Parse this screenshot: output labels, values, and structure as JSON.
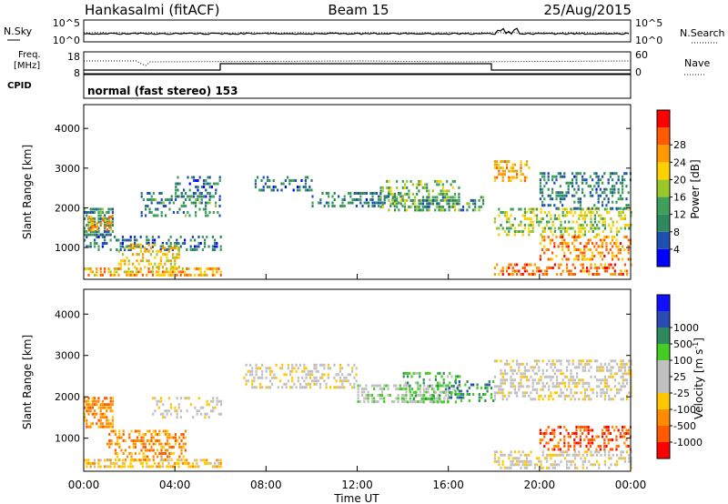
{
  "header": {
    "station": "Hankasalmi (fitACF)",
    "beam": "Beam 15",
    "date": "25/Aug/2015"
  },
  "summary_panel": {
    "nsky_label": "N.Sky",
    "nsearch_label": "N.Search",
    "noise_tick_top": "10^5",
    "noise_tick_bottom": "10^0",
    "freq_label_line1": "Freq.",
    "freq_label_line2": "[MHz]",
    "freq_tick_top": "18",
    "freq_tick_bottom": "8",
    "nave_label": "Nave",
    "nave_tick_top": "60",
    "nave_tick_bottom": "0",
    "cpid_label": "CPID",
    "cpid_text": "normal (fast stereo) 153"
  },
  "colors": {
    "power": [
      "#0000ff",
      "#1f4fb0",
      "#2e8a5e",
      "#3ea05a",
      "#9ac82a",
      "#ffd000",
      "#ff9900",
      "#ff5a00",
      "#ff0000"
    ],
    "velocity": [
      "#ff0000",
      "#ff5a00",
      "#ff8c00",
      "#ffc800",
      "#c0c0c0",
      "#c0c0c0",
      "#44cc22",
      "#2e8a5e",
      "#2a4ab5",
      "#1010ff"
    ]
  },
  "chart_data": [
    {
      "type": "heatmap",
      "name": "power",
      "ylabel": "Slant Range [km]",
      "yticks": [
        "1000",
        "2000",
        "3000",
        "4000"
      ],
      "ytick_values": [
        1000,
        2000,
        3000,
        4000
      ],
      "ylim": [
        200,
        4600
      ],
      "xlim": [
        0,
        24
      ],
      "colorbar_label": "Power [dB]",
      "colorbar_ticks": [
        "4",
        "8",
        "12",
        "16",
        "20",
        "24",
        "28"
      ],
      "colorbar_range": [
        0,
        32
      ],
      "scatter_regions": [
        {
          "t0": 0.0,
          "t1": 1.3,
          "r0": 1300,
          "r1": 2000,
          "level": 8,
          "density": 0.7
        },
        {
          "t0": 0.2,
          "t1": 1.2,
          "r0": 1400,
          "r1": 1800,
          "level": 22,
          "density": 0.6
        },
        {
          "t0": 0.0,
          "t1": 6.0,
          "r0": 300,
          "r1": 500,
          "level": 20,
          "density": 0.6
        },
        {
          "t0": 0.0,
          "t1": 6.0,
          "r0": 900,
          "r1": 1300,
          "level": 6,
          "density": 0.4
        },
        {
          "t0": 1.5,
          "t1": 4.2,
          "r0": 500,
          "r1": 1100,
          "level": 18,
          "density": 0.4
        },
        {
          "t0": 2.5,
          "t1": 6.0,
          "r0": 1800,
          "r1": 2400,
          "level": 8,
          "density": 0.4
        },
        {
          "t0": 4.0,
          "t1": 6.0,
          "r0": 2300,
          "r1": 2800,
          "level": 6,
          "density": 0.3
        },
        {
          "t0": 7.5,
          "t1": 10.0,
          "r0": 2400,
          "r1": 2800,
          "level": 6,
          "density": 0.3
        },
        {
          "t0": 10.0,
          "t1": 14.0,
          "r0": 2000,
          "r1": 2400,
          "level": 7,
          "density": 0.45
        },
        {
          "t0": 13.0,
          "t1": 16.5,
          "r0": 1900,
          "r1": 2700,
          "level": 12,
          "density": 0.4
        },
        {
          "t0": 14.5,
          "t1": 17.5,
          "r0": 1900,
          "r1": 2300,
          "level": 9,
          "density": 0.45
        },
        {
          "t0": 18.0,
          "t1": 24.0,
          "r0": 1300,
          "r1": 2000,
          "level": 14,
          "density": 0.4
        },
        {
          "t0": 18.0,
          "t1": 19.5,
          "r0": 2700,
          "r1": 3200,
          "level": 20,
          "density": 0.5
        },
        {
          "t0": 20.0,
          "t1": 24.0,
          "r0": 2000,
          "r1": 2900,
          "level": 7,
          "density": 0.4
        },
        {
          "t0": 20.0,
          "t1": 24.0,
          "r0": 700,
          "r1": 1300,
          "level": 22,
          "density": 0.4
        },
        {
          "t0": 18.0,
          "t1": 24.0,
          "r0": 300,
          "r1": 600,
          "level": 24,
          "density": 0.4
        }
      ]
    },
    {
      "type": "heatmap",
      "name": "velocity",
      "ylabel": "Slant Range [km]",
      "yticks": [
        "1000",
        "2000",
        "3000",
        "4000"
      ],
      "ytick_values": [
        1000,
        2000,
        3000,
        4000
      ],
      "ylim": [
        200,
        4600
      ],
      "xlim": [
        0,
        24
      ],
      "xticks": [
        "00:00",
        "04:00",
        "08:00",
        "12:00",
        "16:00",
        "20:00",
        "00:00"
      ],
      "xtick_values": [
        0,
        4,
        8,
        12,
        16,
        20,
        24
      ],
      "xlabel": "Time UT",
      "colorbar_label": "Velocity [m s",
      "colorbar_label_sup": "-1",
      "colorbar_ticks": [
        "-1000",
        "-500",
        "-100",
        "-25",
        "25",
        "100",
        "500",
        "1000"
      ],
      "scatter_regions": [
        {
          "t0": 0.0,
          "t1": 1.3,
          "r0": 1300,
          "r1": 2000,
          "level": 2,
          "density": 0.6
        },
        {
          "t0": 1.0,
          "t1": 4.5,
          "r0": 500,
          "r1": 1200,
          "level": 2,
          "density": 0.45
        },
        {
          "t0": 0.0,
          "t1": 6.0,
          "r0": 300,
          "r1": 500,
          "level": 3,
          "density": 0.55
        },
        {
          "t0": 3.0,
          "t1": 6.0,
          "r0": 1500,
          "r1": 2000,
          "level": 4,
          "density": 0.35
        },
        {
          "t0": 7.0,
          "t1": 12.0,
          "r0": 2200,
          "r1": 2800,
          "level": 4,
          "density": 0.4
        },
        {
          "t0": 12.0,
          "t1": 16.0,
          "r0": 1900,
          "r1": 2300,
          "level": 5,
          "density": 0.5
        },
        {
          "t0": 14.0,
          "t1": 16.5,
          "r0": 1900,
          "r1": 2600,
          "level": 6,
          "density": 0.35
        },
        {
          "t0": 16.0,
          "t1": 18.0,
          "r0": 1900,
          "r1": 2400,
          "level": 7,
          "density": 0.3
        },
        {
          "t0": 18.0,
          "t1": 24.0,
          "r0": 1900,
          "r1": 2900,
          "level": 4,
          "density": 0.45
        },
        {
          "t0": 20.0,
          "t1": 24.0,
          "r0": 700,
          "r1": 1300,
          "level": 1,
          "density": 0.4
        },
        {
          "t0": 18.0,
          "t1": 24.0,
          "r0": 300,
          "r1": 700,
          "level": 4,
          "density": 0.4
        }
      ]
    }
  ]
}
